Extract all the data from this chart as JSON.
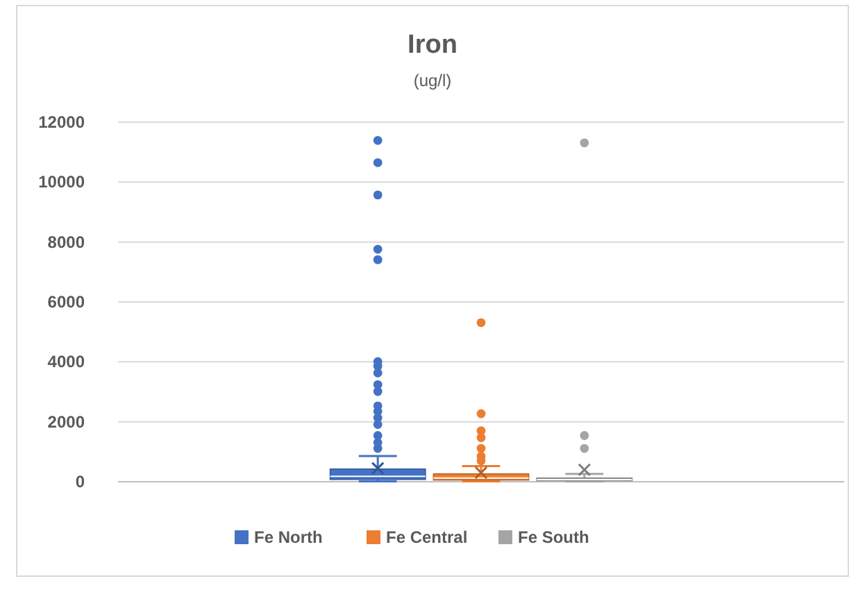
{
  "chart_data": {
    "type": "box",
    "title": "Iron",
    "subtitle": "(ug/l)",
    "categories": [
      null
    ],
    "series": [
      {
        "name": "Fe North",
        "color": "#4472c4",
        "boxes": [
          {
            "low": 10,
            "q1": 80,
            "median": 180,
            "q3": 420,
            "high": 860,
            "mean": 450,
            "outliers": [
              1110,
              1310,
              1540,
              1910,
              2130,
              2350,
              2530,
              3010,
              3240,
              3630,
              3860,
              4010,
              7410,
              7760,
              9570,
              10650,
              11390
            ]
          }
        ]
      },
      {
        "name": "Fe Central",
        "color": "#ed7d31",
        "boxes": [
          {
            "low": 10,
            "q1": 60,
            "median": 120,
            "q3": 260,
            "high": 520,
            "mean": 300,
            "outliers": [
              700,
              850,
              1110,
              1470,
              1700,
              2270,
              5310
            ]
          }
        ]
      },
      {
        "name": "Fe South",
        "color": "#a5a5a5",
        "boxes": [
          {
            "low": 10,
            "q1": 40,
            "median": 70,
            "q3": 120,
            "high": 260,
            "mean": 400,
            "outliers": [
              1110,
              1540,
              11310
            ]
          }
        ]
      }
    ],
    "ylim": [
      0,
      12000
    ],
    "yticks": [
      0,
      2000,
      4000,
      6000,
      8000,
      10000,
      12000
    ],
    "grid": "y",
    "legend": "bottom"
  }
}
